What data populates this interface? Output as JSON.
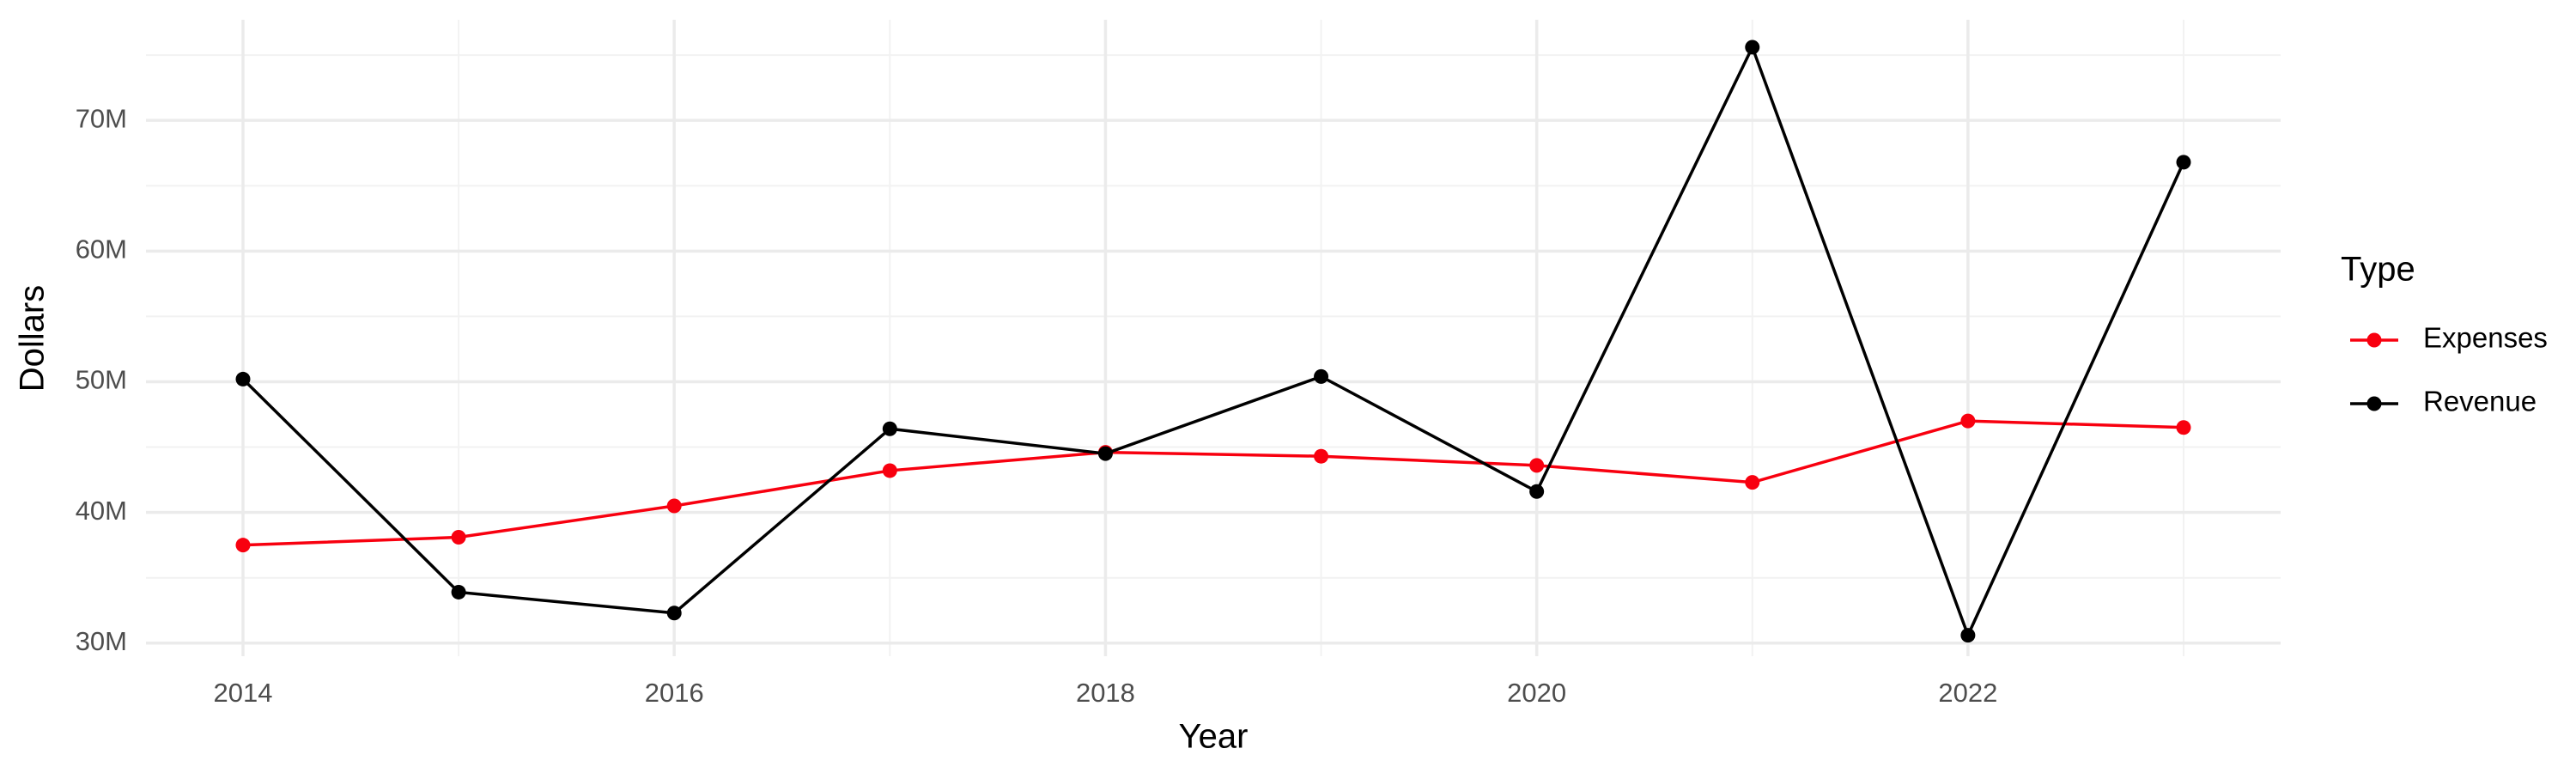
{
  "chart_data": {
    "type": "line",
    "x_label": "Year",
    "y_label": "Dollars",
    "legend_title": "Type",
    "legend_position": "right",
    "grid": true,
    "x": [
      2014,
      2015,
      2016,
      2017,
      2018,
      2019,
      2020,
      2021,
      2022,
      2023
    ],
    "series": [
      {
        "name": "Expenses",
        "color": "#f8000f",
        "values": [
          37500000,
          38100000,
          40500000,
          43200000,
          44600000,
          44300000,
          43600000,
          42300000,
          47000000,
          46500000
        ]
      },
      {
        "name": "Revenue",
        "color": "#000000",
        "values": [
          50200000,
          33900000,
          32300000,
          46400000,
          44500000,
          50400000,
          41600000,
          75600000,
          30600000,
          66800000
        ]
      }
    ],
    "xlim": [
      2013.55,
      2023.45
    ],
    "xticks": [
      2014,
      2016,
      2018,
      2020,
      2022
    ],
    "xminorticks": [
      2015,
      2017,
      2019,
      2021,
      2023
    ],
    "ylim": [
      29000000,
      77700000
    ],
    "yticks": [
      {
        "value": 30000000,
        "label": "30M"
      },
      {
        "value": 40000000,
        "label": "40M"
      },
      {
        "value": 50000000,
        "label": "50M"
      },
      {
        "value": 60000000,
        "label": "60M"
      },
      {
        "value": 70000000,
        "label": "70M"
      }
    ],
    "yminorticks": [
      35000000,
      45000000,
      55000000,
      65000000,
      75000000
    ]
  }
}
